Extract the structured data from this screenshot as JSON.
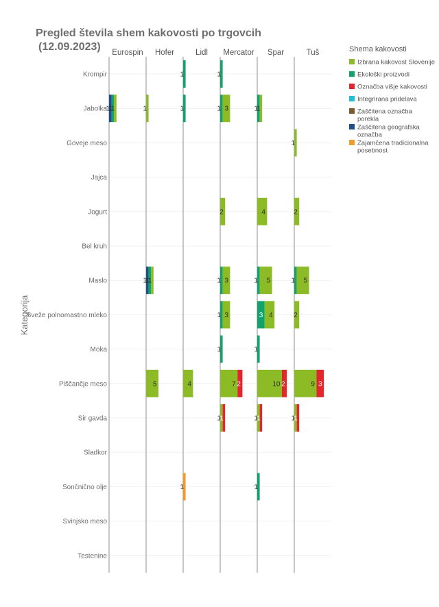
{
  "chart_data": {
    "type": "bar",
    "orientation": "horizontal",
    "stacked": true,
    "title_lines": [
      "Pregled števila shem kakovosti po trgovcih",
      "(12.09.2023)"
    ],
    "ylabel": "Kategorija",
    "legend_title": "Shema kakovosti",
    "legend_position": "right",
    "grid": true,
    "xlim": [
      0,
      15
    ],
    "facets": [
      "Eurospin",
      "Hofer",
      "Lidl",
      "Mercator",
      "Spar",
      "Tuš"
    ],
    "categories": [
      "Krompir",
      "Jabolka",
      "Goveje meso",
      "Jajca",
      "Jogurt",
      "Bel kruh",
      "Maslo",
      "Sveže polnomastno mleko",
      "Moka",
      "Piščančje meso",
      "Sir gavda",
      "Sladkor",
      "Sončnično olje",
      "Svinjsko meso",
      "Testenine"
    ],
    "series": [
      {
        "name": "Izbrana kakovost Slovenije",
        "color": "#8dbb25"
      },
      {
        "name": "Ekološki proizvodi",
        "color": "#11a36b"
      },
      {
        "name": "Označba višje kakovosti",
        "color": "#e1262d"
      },
      {
        "name": "Integrirana pridelava",
        "color": "#1fc0d6"
      },
      {
        "name": "Zaščitena označba porekla",
        "color": "#7c5a2c"
      },
      {
        "name": "Zaščitena geografska označba",
        "color": "#1d4f8c"
      },
      {
        "name": "Zajamčena tradicionalna posebnost",
        "color": "#f39a2b"
      }
    ],
    "values": {
      "Eurospin": {
        "Jabolka": {
          "Zaščitena geografska označba": 1,
          "Ekološki proizvodi": 1,
          "Izbrana kakovost Slovenije": 1
        }
      },
      "Hofer": {
        "Jabolka": {
          "Izbrana kakovost Slovenije": 1
        },
        "Maslo": {
          "Zaščitena geografska označba": 1,
          "Ekološki proizvodi": 1,
          "Izbrana kakovost Slovenije": 1
        },
        "Piščančje meso": {
          "Izbrana kakovost Slovenije": 5
        }
      },
      "Lidl": {
        "Krompir": {
          "Ekološki proizvodi": 1
        },
        "Jabolka": {
          "Ekološki proizvodi": 1
        },
        "Piščančje meso": {
          "Izbrana kakovost Slovenije": 4
        },
        "Sončnično olje": {
          "Zajamčena tradicionalna posebnost": 1
        }
      },
      "Mercator": {
        "Krompir": {
          "Ekološki proizvodi": 1
        },
        "Jabolka": {
          "Ekološki proizvodi": 1,
          "Izbrana kakovost Slovenije": 3
        },
        "Jogurt": {
          "Izbrana kakovost Slovenije": 2
        },
        "Maslo": {
          "Ekološki proizvodi": 1,
          "Izbrana kakovost Slovenije": 3
        },
        "Sveže polnomastno mleko": {
          "Ekološki proizvodi": 1,
          "Izbrana kakovost Slovenije": 3
        },
        "Moka": {
          "Ekološki proizvodi": 1
        },
        "Piščančje meso": {
          "Izbrana kakovost Slovenije": 7,
          "Označba višje kakovosti": 2
        },
        "Sir gavda": {
          "Izbrana kakovost Slovenije": 1,
          "Označba višje kakovosti": 1
        }
      },
      "Spar": {
        "Jabolka": {
          "Ekološki proizvodi": 1,
          "Izbrana kakovost Slovenije": 1
        },
        "Jogurt": {
          "Izbrana kakovost Slovenije": 4
        },
        "Maslo": {
          "Ekološki proizvodi": 1,
          "Izbrana kakovost Slovenije": 5
        },
        "Sveže polnomastno mleko": {
          "Ekološki proizvodi": 3,
          "Izbrana kakovost Slovenije": 4
        },
        "Moka": {
          "Ekološki proizvodi": 1
        },
        "Piščančje meso": {
          "Izbrana kakovost Slovenije": 10,
          "Označba višje kakovosti": 2
        },
        "Sir gavda": {
          "Izbrana kakovost Slovenije": 1,
          "Označba višje kakovosti": 1
        },
        "Sončnično olje": {
          "Ekološki proizvodi": 1
        }
      },
      "Tuš": {
        "Goveje meso": {
          "Izbrana kakovost Slovenije": 1
        },
        "Jogurt": {
          "Izbrana kakovost Slovenije": 2
        },
        "Maslo": {
          "Ekološki proizvodi": 1,
          "Izbrana kakovost Slovenije": 5
        },
        "Sveže polnomastno mleko": {
          "Izbrana kakovost Slovenije": 2
        },
        "Piščančje meso": {
          "Izbrana kakovost Slovenije": 9,
          "Označba višje kakovosti": 3
        },
        "Sir gavda": {
          "Izbrana kakovost Slovenije": 1,
          "Označba višje kakovosti": 1
        }
      }
    }
  }
}
